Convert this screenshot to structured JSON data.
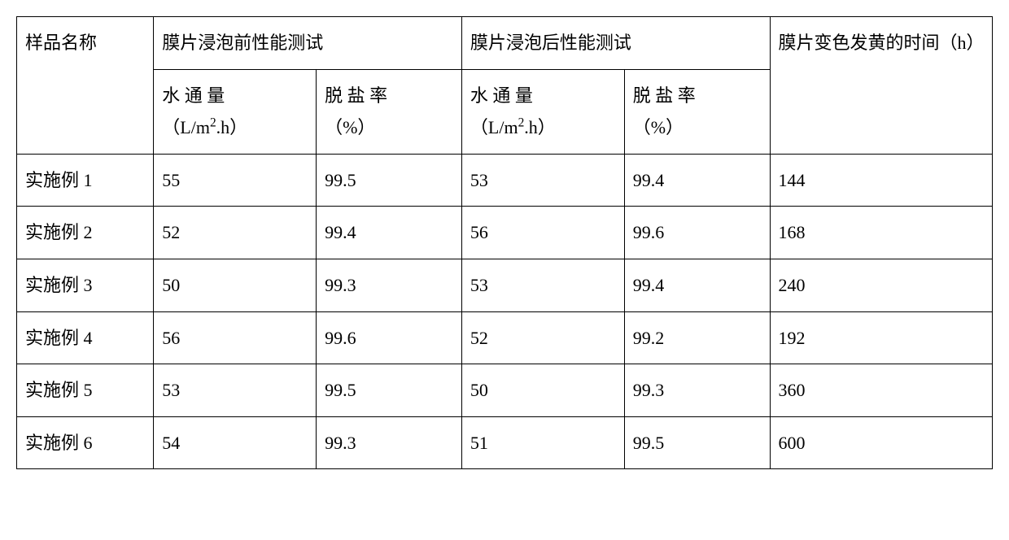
{
  "table": {
    "type": "table",
    "background_color": "#ffffff",
    "border_color": "#000000",
    "text_color": "#000000",
    "font_size_pt": 16,
    "font_family": "SimSun",
    "header": {
      "sample_name": "样品名称",
      "before_soak": "膜片浸泡前性能测试",
      "after_soak": "膜片浸泡后性能测试",
      "yellowing_time": "膜片变色发黄的时间（h）",
      "water_flux": "水 通 量（L/m².h）",
      "desalination_rate": "脱 盐 率（%）"
    },
    "columns": [
      "样品名称",
      "水通量（L/m².h）前",
      "脱盐率（%）前",
      "水通量（L/m².h）后",
      "脱盐率（%）后",
      "膜片变色发黄的时间（h）"
    ],
    "rows": [
      {
        "name": "实施例 1",
        "before_flux": "55",
        "before_rate": "99.5",
        "after_flux": "53",
        "after_rate": "99.4",
        "yellow_time": "144"
      },
      {
        "name": "实施例 2",
        "before_flux": "52",
        "before_rate": "99.4",
        "after_flux": "56",
        "after_rate": "99.6",
        "yellow_time": "168"
      },
      {
        "name": "实施例 3",
        "before_flux": "50",
        "before_rate": "99.3",
        "after_flux": "53",
        "after_rate": "99.4",
        "yellow_time": "240"
      },
      {
        "name": "实施例 4",
        "before_flux": "56",
        "before_rate": "99.6",
        "after_flux": "52",
        "after_rate": "99.2",
        "yellow_time": "192"
      },
      {
        "name": "实施例 5",
        "before_flux": "53",
        "before_rate": "99.5",
        "after_flux": "50",
        "after_rate": "99.3",
        "yellow_time": "360"
      },
      {
        "name": "实施例 6",
        "before_flux": "54",
        "before_rate": "99.3",
        "after_flux": "51",
        "after_rate": "99.5",
        "yellow_time": "600"
      }
    ],
    "column_widths": [
      "160px",
      "190px",
      "170px",
      "190px",
      "170px",
      "260px"
    ]
  }
}
